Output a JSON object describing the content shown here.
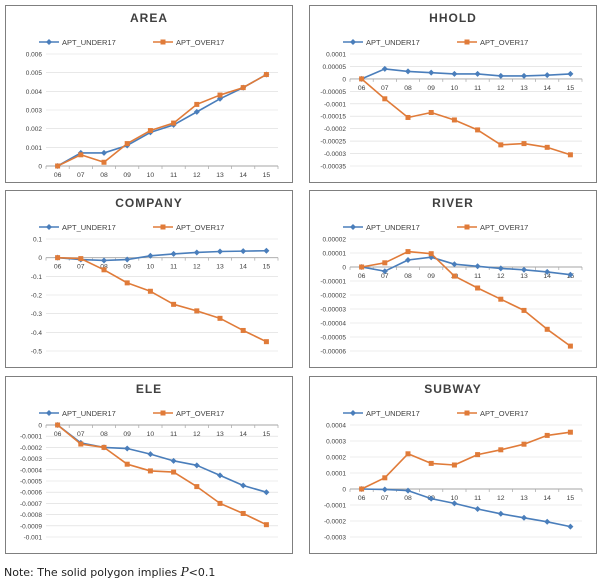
{
  "legend_labels": [
    "APT_UNDER17",
    "APT_OVER17"
  ],
  "colors": {
    "under": "#4a7ebb",
    "over": "#e07b39",
    "grid": "#d9d9d9",
    "axis": "#a6a6a6"
  },
  "note": {
    "prefix": "Note: The solid polygon implies ",
    "symbol": "P",
    "suffix": "<0.1"
  },
  "chart_data": [
    {
      "type": "line",
      "title": "AREA",
      "categories": [
        "06",
        "07",
        "08",
        "09",
        "10",
        "11",
        "12",
        "13",
        "14",
        "15"
      ],
      "ylim": [
        0,
        0.006
      ],
      "yticks": [
        0,
        0.001,
        0.002,
        0.003,
        0.004,
        0.005,
        0.006
      ],
      "ytick_labels": [
        "0",
        "0.001",
        "0.002",
        "0.003",
        "0.004",
        "0.005",
        "0.006"
      ],
      "series": [
        {
          "name": "APT_UNDER17",
          "values": [
            0,
            0.0007,
            0.0007,
            0.0011,
            0.0018,
            0.0022,
            0.0029,
            0.0036,
            0.0042,
            0.0049
          ]
        },
        {
          "name": "APT_OVER17",
          "values": [
            0,
            0.0006,
            0.0002,
            0.0012,
            0.0019,
            0.0023,
            0.0033,
            0.0038,
            0.0042,
            0.0049
          ]
        }
      ]
    },
    {
      "type": "line",
      "title": "HHOLD",
      "categories": [
        "06",
        "07",
        "08",
        "09",
        "10",
        "11",
        "12",
        "13",
        "14",
        "15"
      ],
      "ylim": [
        -0.00035,
        0.0001
      ],
      "yticks": [
        -0.00035,
        -0.0003,
        -0.00025,
        -0.0002,
        -0.00015,
        -0.0001,
        -5e-05,
        0,
        5e-05,
        0.0001
      ],
      "ytick_labels": [
        "-0.00035",
        "-0.0003",
        "-0.00025",
        "-0.0002",
        "-0.00015",
        "-0.0001",
        "-0.00005",
        "0",
        "0.00005",
        "0.0001"
      ],
      "series": [
        {
          "name": "APT_UNDER17",
          "values": [
            0,
            4e-05,
            3e-05,
            2.5e-05,
            2e-05,
            2e-05,
            1.2e-05,
            1.2e-05,
            1.5e-05,
            2e-05
          ]
        },
        {
          "name": "APT_OVER17",
          "values": [
            0,
            -8e-05,
            -0.000155,
            -0.000135,
            -0.000165,
            -0.000205,
            -0.000265,
            -0.00026,
            -0.000275,
            -0.000305
          ]
        }
      ]
    },
    {
      "type": "line",
      "title": "COMPANY",
      "categories": [
        "06",
        "07",
        "08",
        "09",
        "10",
        "11",
        "12",
        "13",
        "14",
        "15"
      ],
      "ylim": [
        -0.5,
        0.1
      ],
      "yticks": [
        -0.5,
        -0.4,
        -0.3,
        -0.2,
        -0.1,
        0,
        0.1
      ],
      "ytick_labels": [
        "-0.5",
        "-0.4",
        "-0.3",
        "-0.2",
        "-0.1",
        "0",
        "0.1"
      ],
      "series": [
        {
          "name": "APT_UNDER17",
          "values": [
            0,
            -0.01,
            -0.015,
            -0.01,
            0.01,
            0.02,
            0.028,
            0.033,
            0.035,
            0.037
          ]
        },
        {
          "name": "APT_OVER17",
          "values": [
            0,
            -0.005,
            -0.065,
            -0.135,
            -0.18,
            -0.25,
            -0.285,
            -0.325,
            -0.39,
            -0.45
          ]
        }
      ]
    },
    {
      "type": "line",
      "title": "RIVER",
      "categories": [
        "06",
        "07",
        "08",
        "09",
        "10",
        "11",
        "12",
        "13",
        "14",
        "15"
      ],
      "ylim": [
        -6e-05,
        2e-05
      ],
      "yticks": [
        -6e-05,
        -5e-05,
        -4e-05,
        -3e-05,
        -2e-05,
        -1e-05,
        0,
        1e-05,
        2e-05
      ],
      "ytick_labels": [
        "-0.00006",
        "-0.00005",
        "-0.00004",
        "-0.00003",
        "-0.00002",
        "-0.00001",
        "0",
        "0.00001",
        "0.00002"
      ],
      "series": [
        {
          "name": "APT_UNDER17",
          "values": [
            0,
            -3e-06,
            5e-06,
            7e-06,
            2e-06,
            5e-07,
            -1e-06,
            -2e-06,
            -3.5e-06,
            -5.5e-06
          ]
        },
        {
          "name": "APT_OVER17",
          "values": [
            0,
            3e-06,
            1.1e-05,
            9.5e-06,
            -6.5e-06,
            -1.5e-05,
            -2.3e-05,
            -3.1e-05,
            -4.45e-05,
            -5.65e-05
          ]
        }
      ]
    },
    {
      "type": "line",
      "title": "ELE",
      "categories": [
        "06",
        "07",
        "08",
        "09",
        "10",
        "11",
        "12",
        "13",
        "14",
        "15"
      ],
      "ylim": [
        -0.001,
        0
      ],
      "yticks": [
        -0.001,
        -0.0009,
        -0.0008,
        -0.0007,
        -0.0006,
        -0.0005,
        -0.0004,
        -0.0003,
        -0.0002,
        -0.0001,
        0
      ],
      "ytick_labels": [
        "-0.001",
        "-0.0009",
        "-0.0008",
        "-0.0007",
        "-0.0006",
        "-0.0005",
        "-0.0004",
        "-0.0003",
        "-0.0002",
        "-0.0001",
        "0"
      ],
      "series": [
        {
          "name": "APT_UNDER17",
          "values": [
            0,
            -0.00016,
            -0.0002,
            -0.00021,
            -0.00026,
            -0.00032,
            -0.00036,
            -0.00045,
            -0.00054,
            -0.0006
          ]
        },
        {
          "name": "APT_OVER17",
          "values": [
            0,
            -0.00017,
            -0.0002,
            -0.00035,
            -0.00041,
            -0.00042,
            -0.00055,
            -0.0007,
            -0.00079,
            -0.00089
          ]
        }
      ]
    },
    {
      "type": "line",
      "title": "SUBWAY",
      "categories": [
        "06",
        "07",
        "08",
        "09",
        "10",
        "11",
        "12",
        "13",
        "14",
        "15"
      ],
      "ylim": [
        -0.0003,
        0.0004
      ],
      "yticks": [
        -0.0003,
        -0.0002,
        -0.0001,
        0,
        0.0001,
        0.0002,
        0.0003,
        0.0004
      ],
      "ytick_labels": [
        "-0.0003",
        "-0.0002",
        "-0.0001",
        "0",
        "0.0001",
        "0.0002",
        "0.0003",
        "0.0004"
      ],
      "series": [
        {
          "name": "APT_UNDER17",
          "values": [
            0,
            -3e-06,
            -1e-05,
            -6e-05,
            -9e-05,
            -0.000125,
            -0.000155,
            -0.00018,
            -0.000205,
            -0.000235
          ]
        },
        {
          "name": "APT_OVER17",
          "values": [
            0,
            7e-05,
            0.00022,
            0.00016,
            0.00015,
            0.000215,
            0.000245,
            0.00028,
            0.000335,
            0.000355
          ]
        }
      ]
    }
  ]
}
